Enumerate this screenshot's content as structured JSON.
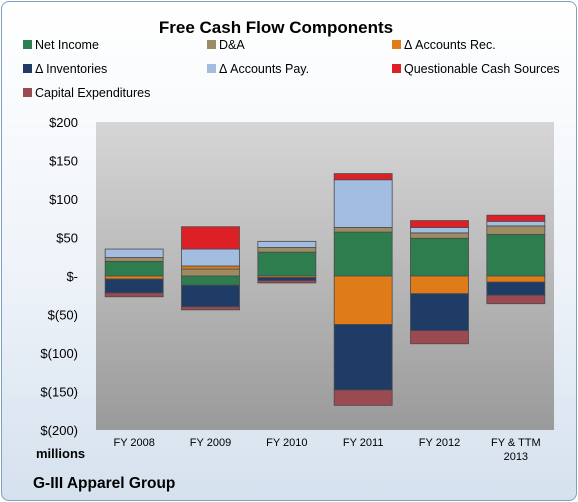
{
  "chart_data": {
    "type": "bar",
    "stacked": true,
    "title": "Free Cash Flow Components",
    "units_label": "millions",
    "footer": "G-III Apparel Group",
    "categories": [
      [
        "FY 2008"
      ],
      [
        "FY 2009"
      ],
      [
        "FY 2010"
      ],
      [
        "FY 2011"
      ],
      [
        "FY 2012"
      ],
      [
        "FY & TTM",
        "2013"
      ]
    ],
    "ylim": [
      -200,
      200
    ],
    "yticks": [
      {
        "value": 200,
        "label": "$200"
      },
      {
        "value": 150,
        "label": "$150"
      },
      {
        "value": 100,
        "label": "$100"
      },
      {
        "value": 50,
        "label": "$50"
      },
      {
        "value": 0,
        "label": "$-"
      },
      {
        "value": -50,
        "label": "$(50)"
      },
      {
        "value": -100,
        "label": "$(100)"
      },
      {
        "value": -150,
        "label": "$(150)"
      },
      {
        "value": -200,
        "label": "$(200)"
      }
    ],
    "grid": false,
    "legend_position": "top",
    "series": [
      {
        "name": "Net Income",
        "color": "#2e7d4f",
        "values": [
          19,
          -12,
          31,
          57,
          49,
          54
        ]
      },
      {
        "name": "D&A",
        "color": "#9c8b63",
        "values": [
          5,
          9,
          6,
          6,
          7,
          11
        ]
      },
      {
        "name": "Δ Accounts Rec.",
        "color": "#e07b1a",
        "values": [
          -4,
          4,
          -2,
          -63,
          -23,
          -8
        ]
      },
      {
        "name": "Δ Inventories",
        "color": "#1f3c66",
        "values": [
          -18,
          -28,
          -4,
          -85,
          -48,
          -17
        ]
      },
      {
        "name": "Δ Accounts Pay.",
        "color": "#a3bde0",
        "values": [
          11,
          22,
          8,
          62,
          7,
          6
        ]
      },
      {
        "name": "Questionable Cash Sources",
        "color": "#dd1f26",
        "values": [
          0,
          29,
          0,
          8,
          9,
          8
        ]
      },
      {
        "name": "Capital Expenditures",
        "color": "#9b4a52",
        "values": [
          -5,
          -4,
          -3,
          -20,
          -17,
          -11
        ]
      }
    ]
  }
}
